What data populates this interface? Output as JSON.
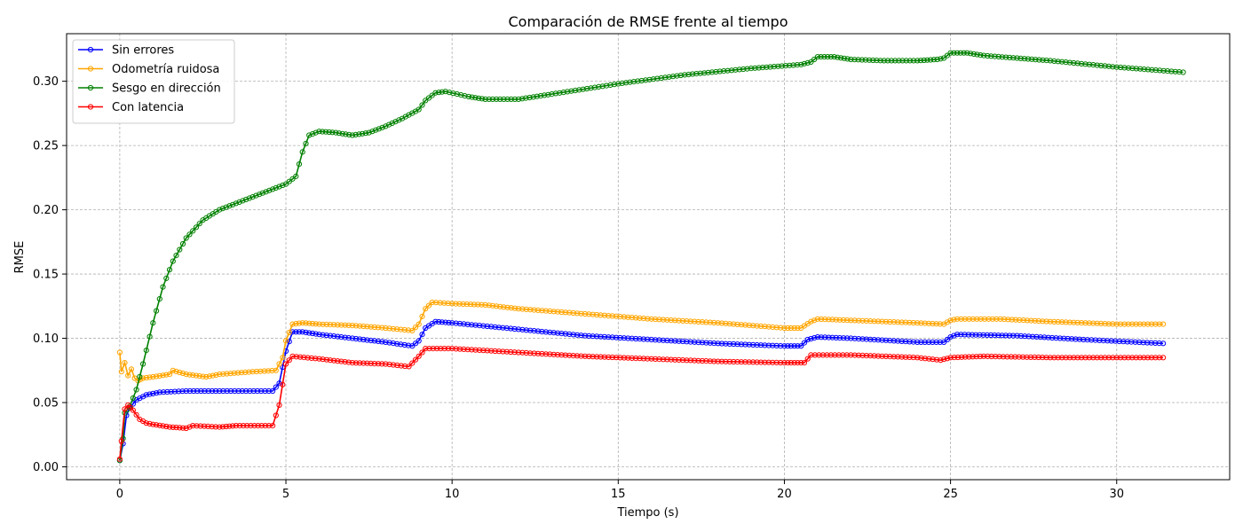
{
  "chart_data": {
    "type": "line",
    "title": "Comparación de RMSE frente al tiempo",
    "xlabel": "Tiempo (s)",
    "ylabel": "RMSE",
    "xlim": [
      -1.6,
      33.4
    ],
    "ylim": [
      -0.01,
      0.337
    ],
    "xticks": [
      0,
      5,
      10,
      15,
      20,
      25,
      30
    ],
    "yticks": [
      0.0,
      0.05,
      0.1,
      0.15,
      0.2,
      0.25,
      0.3
    ],
    "xtick_labels": [
      "0",
      "5",
      "10",
      "15",
      "20",
      "25",
      "30"
    ],
    "ytick_labels": [
      "0.00",
      "0.05",
      "0.10",
      "0.15",
      "0.20",
      "0.25",
      "0.30"
    ],
    "grid": true,
    "legend_position": "top-left",
    "series": [
      {
        "name": "Sin errores",
        "color": "#0000ff",
        "points": [
          [
            0.0,
            0.005
          ],
          [
            0.1,
            0.018
          ],
          [
            0.2,
            0.04
          ],
          [
            0.3,
            0.046
          ],
          [
            0.5,
            0.052
          ],
          [
            0.8,
            0.056
          ],
          [
            1.2,
            0.058
          ],
          [
            2.0,
            0.059
          ],
          [
            3.0,
            0.059
          ],
          [
            4.6,
            0.059
          ],
          [
            4.8,
            0.065
          ],
          [
            5.0,
            0.09
          ],
          [
            5.2,
            0.105
          ],
          [
            5.5,
            0.105
          ],
          [
            6.0,
            0.103
          ],
          [
            7.0,
            0.1
          ],
          [
            8.0,
            0.097
          ],
          [
            8.8,
            0.094
          ],
          [
            9.0,
            0.098
          ],
          [
            9.2,
            0.108
          ],
          [
            9.5,
            0.113
          ],
          [
            10.0,
            0.112
          ],
          [
            12.0,
            0.107
          ],
          [
            14.0,
            0.102
          ],
          [
            16.0,
            0.099
          ],
          [
            18.0,
            0.096
          ],
          [
            20.0,
            0.094
          ],
          [
            20.5,
            0.094
          ],
          [
            20.7,
            0.099
          ],
          [
            21.0,
            0.101
          ],
          [
            22.0,
            0.1
          ],
          [
            24.0,
            0.097
          ],
          [
            24.8,
            0.097
          ],
          [
            25.0,
            0.101
          ],
          [
            25.2,
            0.103
          ],
          [
            27.0,
            0.102
          ],
          [
            29.0,
            0.099
          ],
          [
            31.4,
            0.096
          ]
        ]
      },
      {
        "name": "Odometría ruidosa",
        "color": "#ffa500",
        "points": [
          [
            0.0,
            0.089
          ],
          [
            0.05,
            0.074
          ],
          [
            0.15,
            0.081
          ],
          [
            0.25,
            0.071
          ],
          [
            0.35,
            0.076
          ],
          [
            0.45,
            0.069
          ],
          [
            0.55,
            0.067
          ],
          [
            0.7,
            0.069
          ],
          [
            1.0,
            0.07
          ],
          [
            1.5,
            0.072
          ],
          [
            1.6,
            0.075
          ],
          [
            2.0,
            0.072
          ],
          [
            2.6,
            0.07
          ],
          [
            3.0,
            0.072
          ],
          [
            4.0,
            0.074
          ],
          [
            4.7,
            0.075
          ],
          [
            4.9,
            0.085
          ],
          [
            5.0,
            0.098
          ],
          [
            5.2,
            0.111
          ],
          [
            5.5,
            0.112
          ],
          [
            6.0,
            0.111
          ],
          [
            7.0,
            0.11
          ],
          [
            8.0,
            0.108
          ],
          [
            8.8,
            0.106
          ],
          [
            9.0,
            0.111
          ],
          [
            9.2,
            0.123
          ],
          [
            9.4,
            0.128
          ],
          [
            10.0,
            0.127
          ],
          [
            11.0,
            0.126
          ],
          [
            12.0,
            0.123
          ],
          [
            14.0,
            0.119
          ],
          [
            16.0,
            0.115
          ],
          [
            18.0,
            0.112
          ],
          [
            20.0,
            0.108
          ],
          [
            20.5,
            0.108
          ],
          [
            20.8,
            0.113
          ],
          [
            21.0,
            0.115
          ],
          [
            22.0,
            0.114
          ],
          [
            24.0,
            0.112
          ],
          [
            24.8,
            0.111
          ],
          [
            25.0,
            0.114
          ],
          [
            25.2,
            0.115
          ],
          [
            26.5,
            0.115
          ],
          [
            28.0,
            0.113
          ],
          [
            30.0,
            0.111
          ],
          [
            31.4,
            0.111
          ]
        ]
      },
      {
        "name": "Sesgo en dirección",
        "color": "#008000",
        "points": [
          [
            0.0,
            0.005
          ],
          [
            0.1,
            0.022
          ],
          [
            0.15,
            0.042
          ],
          [
            0.3,
            0.047
          ],
          [
            0.5,
            0.06
          ],
          [
            0.7,
            0.08
          ],
          [
            1.0,
            0.112
          ],
          [
            1.3,
            0.14
          ],
          [
            1.6,
            0.16
          ],
          [
            2.0,
            0.178
          ],
          [
            2.5,
            0.192
          ],
          [
            3.0,
            0.2
          ],
          [
            3.5,
            0.205
          ],
          [
            4.0,
            0.21
          ],
          [
            4.5,
            0.215
          ],
          [
            5.0,
            0.22
          ],
          [
            5.3,
            0.226
          ],
          [
            5.5,
            0.245
          ],
          [
            5.7,
            0.258
          ],
          [
            6.0,
            0.261
          ],
          [
            6.5,
            0.26
          ],
          [
            7.0,
            0.258
          ],
          [
            7.5,
            0.26
          ],
          [
            8.0,
            0.265
          ],
          [
            8.5,
            0.271
          ],
          [
            9.0,
            0.278
          ],
          [
            9.2,
            0.285
          ],
          [
            9.5,
            0.291
          ],
          [
            9.8,
            0.292
          ],
          [
            10.5,
            0.288
          ],
          [
            11.0,
            0.286
          ],
          [
            12.0,
            0.286
          ],
          [
            13.0,
            0.29
          ],
          [
            15.0,
            0.298
          ],
          [
            17.0,
            0.305
          ],
          [
            19.0,
            0.31
          ],
          [
            20.5,
            0.313
          ],
          [
            20.8,
            0.315
          ],
          [
            21.0,
            0.319
          ],
          [
            21.5,
            0.319
          ],
          [
            22.0,
            0.317
          ],
          [
            23.0,
            0.316
          ],
          [
            24.0,
            0.316
          ],
          [
            24.6,
            0.317
          ],
          [
            24.8,
            0.318
          ],
          [
            25.0,
            0.322
          ],
          [
            25.5,
            0.322
          ],
          [
            26.0,
            0.32
          ],
          [
            27.0,
            0.318
          ],
          [
            28.0,
            0.316
          ],
          [
            30.0,
            0.311
          ],
          [
            32.0,
            0.307
          ]
        ]
      },
      {
        "name": "Con latencia",
        "color": "#ff0000",
        "points": [
          [
            0.0,
            0.006
          ],
          [
            0.05,
            0.02
          ],
          [
            0.15,
            0.045
          ],
          [
            0.25,
            0.048
          ],
          [
            0.4,
            0.044
          ],
          [
            0.6,
            0.037
          ],
          [
            0.8,
            0.034
          ],
          [
            1.0,
            0.033
          ],
          [
            1.5,
            0.031
          ],
          [
            2.0,
            0.03
          ],
          [
            2.2,
            0.032
          ],
          [
            3.0,
            0.031
          ],
          [
            3.5,
            0.032
          ],
          [
            4.6,
            0.032
          ],
          [
            4.8,
            0.048
          ],
          [
            5.0,
            0.08
          ],
          [
            5.2,
            0.086
          ],
          [
            6.0,
            0.084
          ],
          [
            7.0,
            0.081
          ],
          [
            8.0,
            0.08
          ],
          [
            8.7,
            0.078
          ],
          [
            9.0,
            0.086
          ],
          [
            9.2,
            0.092
          ],
          [
            10.0,
            0.092
          ],
          [
            12.0,
            0.089
          ],
          [
            14.0,
            0.086
          ],
          [
            16.0,
            0.084
          ],
          [
            18.0,
            0.082
          ],
          [
            20.0,
            0.081
          ],
          [
            20.6,
            0.081
          ],
          [
            20.8,
            0.087
          ],
          [
            22.0,
            0.087
          ],
          [
            24.0,
            0.085
          ],
          [
            24.7,
            0.083
          ],
          [
            25.0,
            0.085
          ],
          [
            26.0,
            0.086
          ],
          [
            28.0,
            0.085
          ],
          [
            30.0,
            0.085
          ],
          [
            31.4,
            0.085
          ]
        ]
      }
    ]
  }
}
